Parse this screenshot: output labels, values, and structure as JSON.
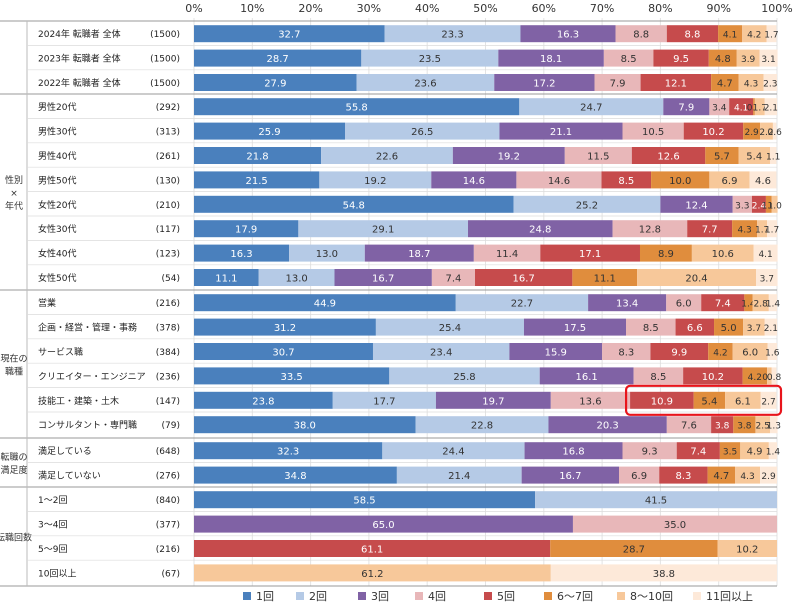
{
  "chart_data": {
    "type": "bar",
    "stacked": true,
    "orientation": "horizontal",
    "x_ticks": [
      "0%",
      "10%",
      "20%",
      "30%",
      "40%",
      "50%",
      "60%",
      "70%",
      "80%",
      "90%",
      "100%"
    ],
    "legend": {
      "position": "bottom",
      "items": [
        {
          "label": "1回",
          "color": "#4a80bd"
        },
        {
          "label": "2回",
          "color": "#b5cae6"
        },
        {
          "label": "3回",
          "color": "#8062a5"
        },
        {
          "label": "4回",
          "color": "#e8b7b9"
        },
        {
          "label": "5回",
          "color": "#c64b4c"
        },
        {
          "label": "6～7回",
          "color": "#e08d3d"
        },
        {
          "label": "8～10回",
          "color": "#f7c89a"
        },
        {
          "label": "11回以上",
          "color": "#fde9d9"
        }
      ]
    },
    "groups": [
      {
        "label": "",
        "rows": [
          {
            "label": "2024年 転職者 全体",
            "n": "(1500)",
            "values": [
              32.7,
              23.3,
              16.3,
              8.8,
              8.8,
              4.1,
              4.2,
              1.7
            ]
          },
          {
            "label": "2023年 転職者 全体",
            "n": "(1500)",
            "values": [
              28.7,
              23.5,
              18.1,
              8.5,
              9.5,
              4.8,
              3.9,
              3.1
            ]
          },
          {
            "label": "2022年 転職者 全体",
            "n": "(1500)",
            "values": [
              27.9,
              23.6,
              17.2,
              7.9,
              12.1,
              4.7,
              4.3,
              2.3
            ]
          }
        ]
      },
      {
        "label": "性別\n×\n年代",
        "rows": [
          {
            "label": "男性20代",
            "n": "(292)",
            "values": [
              55.8,
              24.7,
              7.9,
              3.4,
              4.1,
              0.3,
              1.7,
              2.1
            ]
          },
          {
            "label": "男性30代",
            "n": "(313)",
            "values": [
              25.9,
              26.5,
              21.1,
              10.5,
              10.2,
              2.9,
              2.2,
              0.6
            ]
          },
          {
            "label": "男性40代",
            "n": "(261)",
            "values": [
              21.8,
              22.6,
              19.2,
              11.5,
              12.6,
              5.7,
              5.4,
              1.1
            ]
          },
          {
            "label": "男性50代",
            "n": "(130)",
            "values": [
              21.5,
              19.2,
              14.6,
              14.6,
              8.5,
              10.0,
              6.9,
              4.6
            ]
          },
          {
            "label": "女性20代",
            "n": "(210)",
            "values": [
              54.8,
              25.2,
              12.4,
              3.3,
              2.4,
              1.0,
              1.0,
              0
            ]
          },
          {
            "label": "女性30代",
            "n": "(117)",
            "values": [
              17.9,
              29.1,
              24.8,
              12.8,
              7.7,
              4.3,
              1.7,
              1.7
            ]
          },
          {
            "label": "女性40代",
            "n": "(123)",
            "values": [
              16.3,
              13.0,
              18.7,
              11.4,
              17.1,
              8.9,
              10.6,
              4.1
            ]
          },
          {
            "label": "女性50代",
            "n": "(54)",
            "values": [
              11.1,
              13.0,
              16.7,
              7.4,
              16.7,
              11.1,
              20.4,
              3.7
            ]
          }
        ]
      },
      {
        "label": "現在の\n職種",
        "rows": [
          {
            "label": "営業",
            "n": "(216)",
            "values": [
              44.9,
              22.7,
              13.4,
              6.0,
              7.4,
              1.4,
              2.8,
              1.4
            ]
          },
          {
            "label": "企画・経営・管理・事務",
            "n": "(378)",
            "values": [
              31.2,
              25.4,
              17.5,
              8.5,
              6.6,
              5.0,
              3.7,
              2.1
            ]
          },
          {
            "label": "サービス職",
            "n": "(384)",
            "values": [
              30.7,
              23.4,
              15.9,
              8.3,
              9.9,
              4.2,
              6.0,
              1.6
            ]
          },
          {
            "label": "クリエイター・エンジニア",
            "n": "(236)",
            "values": [
              33.5,
              25.8,
              16.1,
              8.5,
              10.2,
              4.2,
              0.8,
              0.8
            ]
          },
          {
            "label": "技能工・建築・土木",
            "n": "(147)",
            "values": [
              23.8,
              17.7,
              19.7,
              13.6,
              10.9,
              5.4,
              6.1,
              2.7
            ],
            "highlight": true
          },
          {
            "label": "コンサルタント・専門職",
            "n": "(79)",
            "values": [
              38.0,
              22.8,
              20.3,
              7.6,
              3.8,
              3.8,
              2.5,
              1.3
            ]
          }
        ]
      },
      {
        "label": "転職の\n満足度",
        "rows": [
          {
            "label": "満足している",
            "n": "(648)",
            "values": [
              32.3,
              24.4,
              16.8,
              9.3,
              7.4,
              3.5,
              4.9,
              1.4
            ]
          },
          {
            "label": "満足していない",
            "n": "(276)",
            "values": [
              34.8,
              21.4,
              16.7,
              6.9,
              8.3,
              4.7,
              4.3,
              2.9
            ]
          }
        ]
      },
      {
        "label": "転職回数",
        "rows": [
          {
            "label": "1～2回",
            "n": "(840)",
            "values": [
              58.5,
              41.5,
              0,
              0,
              0,
              0,
              0,
              0
            ]
          },
          {
            "label": "3～4回",
            "n": "(377)",
            "values": [
              0,
              0,
              65.0,
              35.0,
              0,
              0,
              0,
              0
            ]
          },
          {
            "label": "5～9回",
            "n": "(216)",
            "values": [
              0,
              0,
              0,
              0,
              61.1,
              28.7,
              10.2,
              0
            ]
          },
          {
            "label": "10回以上",
            "n": "(67)",
            "values": [
              0,
              0,
              0,
              0,
              0,
              0,
              61.2,
              38.8
            ]
          }
        ]
      }
    ]
  }
}
